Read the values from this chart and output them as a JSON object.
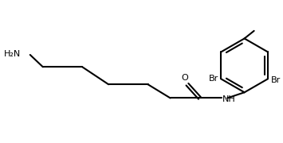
{
  "bg_color": "#ffffff",
  "line_color": "#000000",
  "bond_lw": 1.5,
  "text_color": "#000000",
  "label_h2n": "H₂N",
  "label_o": "O",
  "label_nh": "NH",
  "label_br1": "Br",
  "label_br2": "Br",
  "font_size": 8,
  "figsize": [
    3.55,
    1.8
  ],
  "dpi": 100
}
